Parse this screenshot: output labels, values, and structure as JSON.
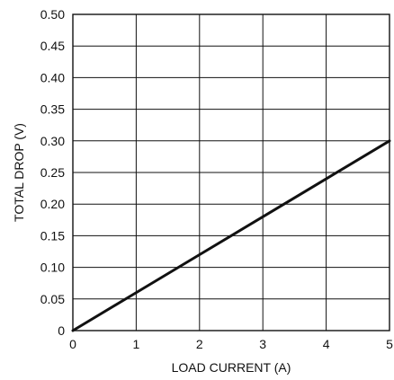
{
  "chart_data": {
    "type": "line",
    "title": "",
    "xlabel": "LOAD CURRENT (A)",
    "ylabel": "TOTAL DROP (V)",
    "xlim": [
      0,
      5
    ],
    "ylim": [
      0,
      0.5
    ],
    "x_ticks": [
      0,
      1,
      2,
      3,
      4,
      5
    ],
    "x_tick_labels": [
      "0",
      "1",
      "2",
      "3",
      "4",
      "5"
    ],
    "y_ticks": [
      0,
      0.05,
      0.1,
      0.15,
      0.2,
      0.25,
      0.3,
      0.35,
      0.4,
      0.45,
      0.5
    ],
    "y_tick_labels": [
      "0",
      "0.05",
      "0.10",
      "0.15",
      "0.20",
      "0.25",
      "0.30",
      "0.35",
      "0.40",
      "0.45",
      "0.50"
    ],
    "grid": true,
    "legend": "none",
    "series": [
      {
        "color": "#111111",
        "x": [
          0,
          1,
          2,
          3,
          4,
          5
        ],
        "y": [
          0,
          0.06,
          0.12,
          0.18,
          0.24,
          0.3
        ]
      }
    ]
  }
}
